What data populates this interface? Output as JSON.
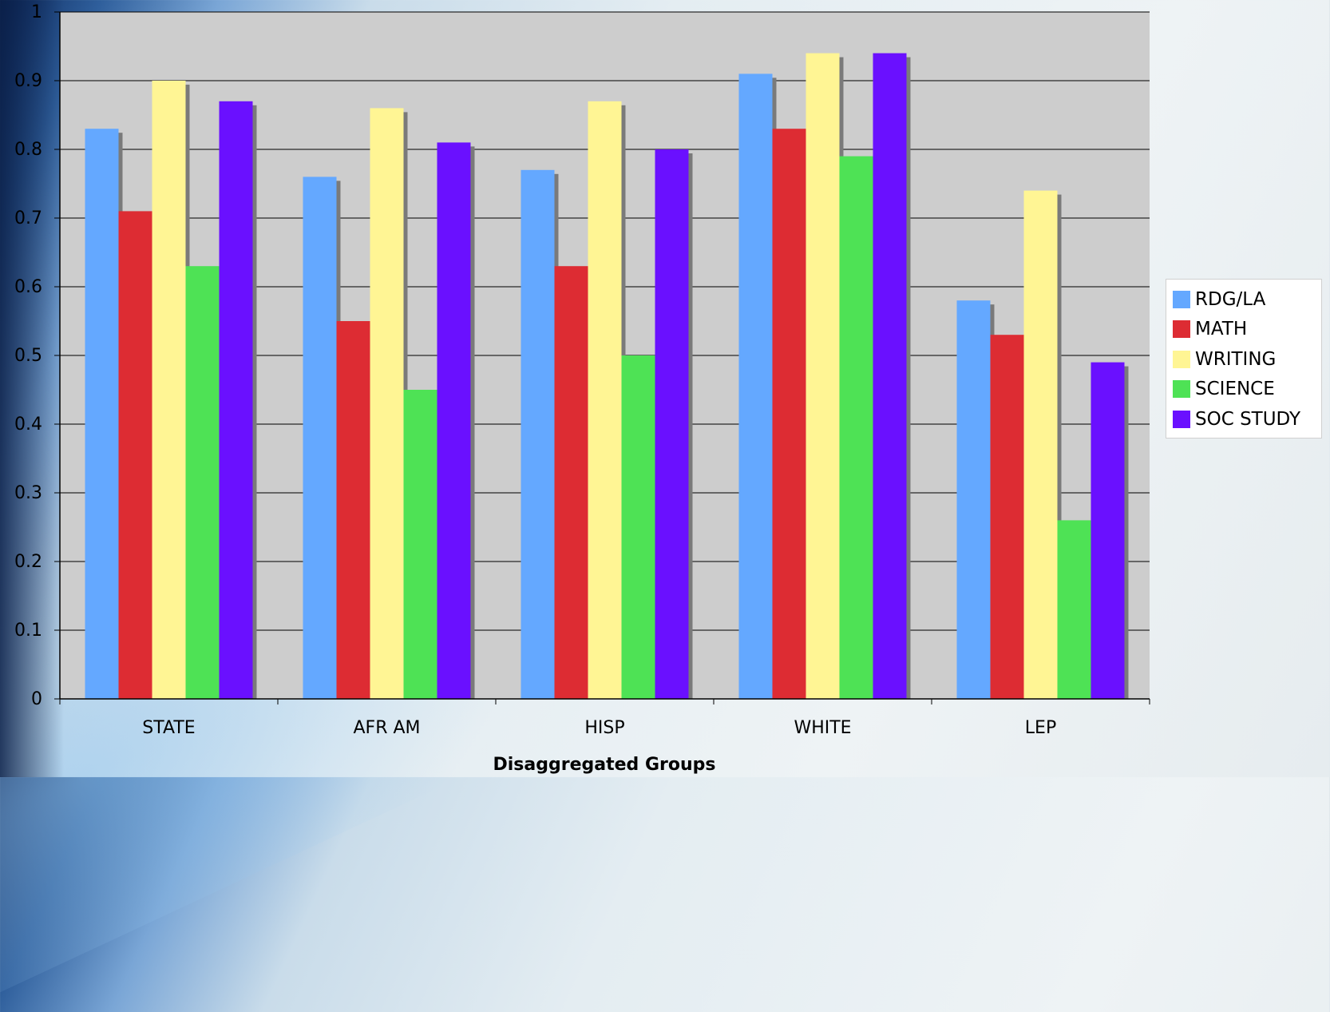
{
  "chart_data": {
    "type": "bar",
    "title": "",
    "xlabel": "Disaggregated Groups",
    "ylabel": "",
    "ylim": [
      0,
      1
    ],
    "yticks": [
      "0",
      "0.1",
      "0.2",
      "0.3",
      "0.4",
      "0.5",
      "0.6",
      "0.7",
      "0.8",
      "0.9",
      "1"
    ],
    "grid": true,
    "legend_position": "right",
    "categories": [
      "STATE",
      "AFR AM",
      "HISP",
      "WHITE",
      "LEP"
    ],
    "series": [
      {
        "name": "RDG/LA",
        "color": "#64a8ff",
        "values": [
          0.83,
          0.76,
          0.77,
          0.91,
          0.58
        ]
      },
      {
        "name": "MATH",
        "color": "#dd2c33",
        "values": [
          0.71,
          0.55,
          0.63,
          0.83,
          0.53
        ]
      },
      {
        "name": "WRITING",
        "color": "#fff594",
        "values": [
          0.9,
          0.86,
          0.87,
          0.94,
          0.74
        ]
      },
      {
        "name": "SCIENCE",
        "color": "#4ee255",
        "values": [
          0.63,
          0.45,
          0.5,
          0.79,
          0.26
        ]
      },
      {
        "name": "SOC STUDY",
        "color": "#6a10ff",
        "values": [
          0.87,
          0.81,
          0.8,
          0.94,
          0.49
        ]
      }
    ]
  }
}
